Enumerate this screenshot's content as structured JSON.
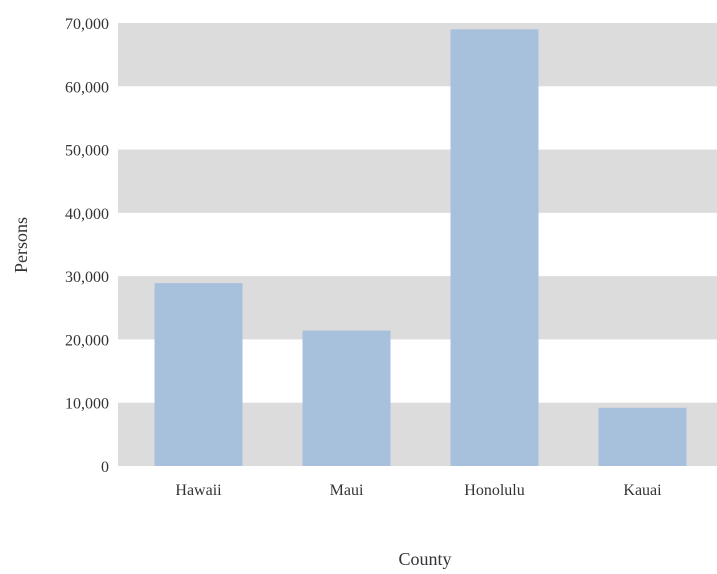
{
  "chart_data": {
    "type": "bar",
    "categories": [
      "Hawaii",
      "Maui",
      "Honolulu",
      "Kauai"
    ],
    "values": [
      28900,
      21400,
      69000,
      9200
    ],
    "xlabel": "County",
    "ylabel": "Persons",
    "ylim": [
      0,
      70000
    ],
    "yticks": [
      0,
      10000,
      20000,
      30000,
      40000,
      50000,
      60000,
      70000
    ],
    "ytick_labels": [
      "0",
      "10,000",
      "20,000",
      "30,000",
      "40,000",
      "50,000",
      "60,000",
      "70,000"
    ],
    "grid": "alternating horizontal bands",
    "legend": "none",
    "colors": {
      "bar": "#a7c0db",
      "band": "#dcdcdc",
      "background": "#ffffff"
    }
  }
}
